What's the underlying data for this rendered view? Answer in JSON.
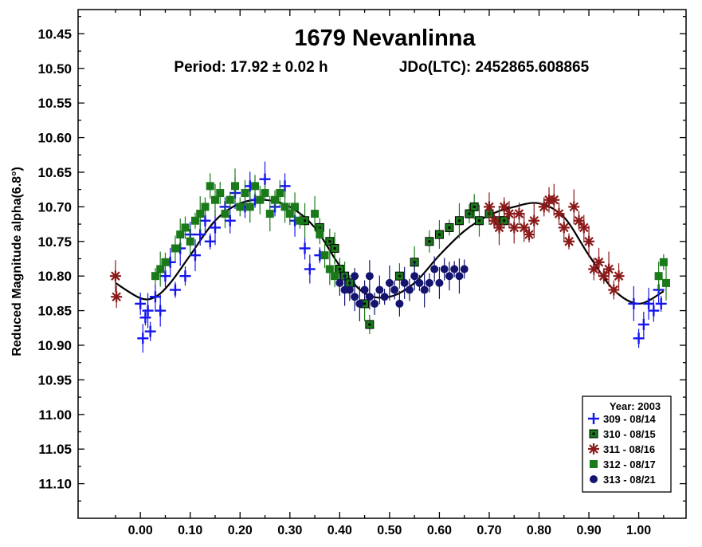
{
  "chart_data": {
    "type": "scatter",
    "title": "1679 Nevanlinna",
    "subtitle_period": "Period: 17.92 ± 0.02 h",
    "subtitle_epoch": "JDo(LTC): 2452865.608865",
    "ylabel": "Reduced Magnitude alpha(6.8°)",
    "xlabel": "",
    "xlim": [
      -0.125,
      1.095
    ],
    "ylim": [
      10.415,
      11.15
    ],
    "y_inverted": true,
    "x_ticks": [
      "0.00",
      "0.10",
      "0.20",
      "0.30",
      "0.40",
      "0.50",
      "0.60",
      "0.70",
      "0.80",
      "0.90",
      "1.00"
    ],
    "y_ticks": [
      "10.45",
      "10.50",
      "10.55",
      "10.60",
      "10.65",
      "10.70",
      "10.75",
      "10.80",
      "10.85",
      "10.90",
      "10.95",
      "11.00",
      "11.05",
      "11.10"
    ],
    "legend": {
      "title": "Year: 2003",
      "placement": "bottom-right",
      "entries": [
        {
          "label": "309 - 08/14",
          "marker": "plus",
          "color": "#1515ee"
        },
        {
          "label": "310 - 08/15",
          "marker": "square-dot",
          "color": "#1a7a1a"
        },
        {
          "label": "311 - 08/16",
          "marker": "asterisk",
          "color": "#8b1a1a"
        },
        {
          "label": "312 - 08/17",
          "marker": "square",
          "color": "#1a7a1a"
        },
        {
          "label": "313 - 08/21",
          "marker": "circle",
          "color": "#141470"
        }
      ]
    },
    "fit_curve": [
      [
        -0.05,
        10.81
      ],
      [
        0.0,
        10.832
      ],
      [
        0.03,
        10.83
      ],
      [
        0.06,
        10.81
      ],
      [
        0.1,
        10.77
      ],
      [
        0.15,
        10.72
      ],
      [
        0.2,
        10.695
      ],
      [
        0.25,
        10.69
      ],
      [
        0.3,
        10.7
      ],
      [
        0.35,
        10.73
      ],
      [
        0.4,
        10.785
      ],
      [
        0.45,
        10.825
      ],
      [
        0.5,
        10.83
      ],
      [
        0.55,
        10.81
      ],
      [
        0.6,
        10.77
      ],
      [
        0.65,
        10.735
      ],
      [
        0.7,
        10.712
      ],
      [
        0.75,
        10.7
      ],
      [
        0.8,
        10.695
      ],
      [
        0.85,
        10.715
      ],
      [
        0.9,
        10.77
      ],
      [
        0.95,
        10.82
      ],
      [
        1.0,
        10.84
      ],
      [
        1.05,
        10.822
      ]
    ],
    "series": [
      {
        "name": "309 - 08/14",
        "marker": "plus",
        "color": "#1515ee",
        "points": [
          [
            0.0,
            10.84
          ],
          [
            0.005,
            10.89
          ],
          [
            0.01,
            10.86
          ],
          [
            0.015,
            10.85
          ],
          [
            0.02,
            10.88
          ],
          [
            0.03,
            10.83
          ],
          [
            0.04,
            10.85
          ],
          [
            0.05,
            10.8
          ],
          [
            0.06,
            10.78
          ],
          [
            0.07,
            10.82
          ],
          [
            0.08,
            10.76
          ],
          [
            0.09,
            10.8
          ],
          [
            0.1,
            10.74
          ],
          [
            0.11,
            10.77
          ],
          [
            0.12,
            10.74
          ],
          [
            0.13,
            10.72
          ],
          [
            0.14,
            10.75
          ],
          [
            0.15,
            10.73
          ],
          [
            0.17,
            10.7
          ],
          [
            0.18,
            10.72
          ],
          [
            0.19,
            10.68
          ],
          [
            0.21,
            10.7
          ],
          [
            0.22,
            10.67
          ],
          [
            0.23,
            10.69
          ],
          [
            0.25,
            10.66
          ],
          [
            0.27,
            10.7
          ],
          [
            0.29,
            10.67
          ],
          [
            0.31,
            10.72
          ],
          [
            0.33,
            10.76
          ],
          [
            0.34,
            10.79
          ],
          [
            0.36,
            10.77
          ],
          [
            0.99,
            10.84
          ],
          [
            1.0,
            10.89
          ],
          [
            1.01,
            10.87
          ],
          [
            1.02,
            10.84
          ],
          [
            1.03,
            10.85
          ],
          [
            1.04,
            10.82
          ],
          [
            1.045,
            10.84
          ]
        ]
      },
      {
        "name": "310 - 08/15",
        "marker": "square-dot",
        "color": "#1a7a1a",
        "points": [
          [
            0.33,
            10.72
          ],
          [
            0.36,
            10.73
          ],
          [
            0.38,
            10.75
          ],
          [
            0.39,
            10.76
          ],
          [
            0.4,
            10.79
          ],
          [
            0.41,
            10.8
          ],
          [
            0.42,
            10.81
          ],
          [
            0.45,
            10.84
          ],
          [
            0.46,
            10.87
          ],
          [
            0.52,
            10.8
          ],
          [
            0.55,
            10.78
          ],
          [
            0.58,
            10.75
          ],
          [
            0.6,
            10.74
          ],
          [
            0.62,
            10.73
          ],
          [
            0.64,
            10.72
          ],
          [
            0.66,
            10.71
          ],
          [
            0.67,
            10.7
          ],
          [
            0.68,
            10.72
          ],
          [
            0.7,
            10.71
          ],
          [
            0.72,
            10.72
          ],
          [
            0.73,
            10.72
          ]
        ]
      },
      {
        "name": "311 - 08/16",
        "marker": "asterisk",
        "color": "#8b1a1a",
        "points": [
          [
            -0.05,
            10.8
          ],
          [
            -0.048,
            10.83
          ],
          [
            0.7,
            10.7
          ],
          [
            0.71,
            10.72
          ],
          [
            0.72,
            10.73
          ],
          [
            0.73,
            10.7
          ],
          [
            0.74,
            10.71
          ],
          [
            0.75,
            10.73
          ],
          [
            0.76,
            10.71
          ],
          [
            0.77,
            10.73
          ],
          [
            0.78,
            10.74
          ],
          [
            0.79,
            10.72
          ],
          [
            0.81,
            10.7
          ],
          [
            0.82,
            10.69
          ],
          [
            0.83,
            10.69
          ],
          [
            0.84,
            10.71
          ],
          [
            0.85,
            10.73
          ],
          [
            0.86,
            10.75
          ],
          [
            0.87,
            10.7
          ],
          [
            0.88,
            10.72
          ],
          [
            0.89,
            10.73
          ],
          [
            0.9,
            10.75
          ],
          [
            0.91,
            10.79
          ],
          [
            0.92,
            10.78
          ],
          [
            0.93,
            10.8
          ],
          [
            0.94,
            10.79
          ],
          [
            0.95,
            10.82
          ],
          [
            0.96,
            10.8
          ]
        ]
      },
      {
        "name": "312 - 08/17",
        "marker": "square",
        "color": "#1a7a1a",
        "points": [
          [
            0.03,
            10.8
          ],
          [
            0.04,
            10.79
          ],
          [
            0.05,
            10.78
          ],
          [
            0.07,
            10.76
          ],
          [
            0.08,
            10.74
          ],
          [
            0.09,
            10.73
          ],
          [
            0.1,
            10.75
          ],
          [
            0.11,
            10.72
          ],
          [
            0.12,
            10.71
          ],
          [
            0.13,
            10.7
          ],
          [
            0.14,
            10.67
          ],
          [
            0.15,
            10.69
          ],
          [
            0.16,
            10.68
          ],
          [
            0.17,
            10.71
          ],
          [
            0.18,
            10.69
          ],
          [
            0.19,
            10.67
          ],
          [
            0.2,
            10.7
          ],
          [
            0.21,
            10.68
          ],
          [
            0.22,
            10.7
          ],
          [
            0.23,
            10.67
          ],
          [
            0.24,
            10.69
          ],
          [
            0.25,
            10.68
          ],
          [
            0.26,
            10.71
          ],
          [
            0.27,
            10.69
          ],
          [
            0.28,
            10.68
          ],
          [
            0.29,
            10.7
          ],
          [
            0.3,
            10.71
          ],
          [
            0.31,
            10.7
          ],
          [
            0.32,
            10.72
          ],
          [
            0.35,
            10.71
          ],
          [
            0.36,
            10.74
          ],
          [
            0.37,
            10.77
          ],
          [
            0.38,
            10.79
          ],
          [
            0.39,
            10.8
          ],
          [
            1.04,
            10.8
          ],
          [
            1.05,
            10.78
          ],
          [
            1.055,
            10.81
          ]
        ]
      },
      {
        "name": "313 - 08/21",
        "marker": "circle",
        "color": "#141470",
        "points": [
          [
            0.4,
            10.81
          ],
          [
            0.41,
            10.82
          ],
          [
            0.42,
            10.82
          ],
          [
            0.43,
            10.83
          ],
          [
            0.43,
            10.8
          ],
          [
            0.44,
            10.84
          ],
          [
            0.45,
            10.82
          ],
          [
            0.46,
            10.83
          ],
          [
            0.46,
            10.8
          ],
          [
            0.47,
            10.84
          ],
          [
            0.48,
            10.82
          ],
          [
            0.49,
            10.83
          ],
          [
            0.5,
            10.81
          ],
          [
            0.51,
            10.82
          ],
          [
            0.52,
            10.84
          ],
          [
            0.53,
            10.81
          ],
          [
            0.54,
            10.82
          ],
          [
            0.55,
            10.8
          ],
          [
            0.56,
            10.81
          ],
          [
            0.57,
            10.82
          ],
          [
            0.58,
            10.81
          ],
          [
            0.59,
            10.79
          ],
          [
            0.6,
            10.81
          ],
          [
            0.61,
            10.79
          ],
          [
            0.62,
            10.8
          ],
          [
            0.63,
            10.79
          ],
          [
            0.64,
            10.8
          ],
          [
            0.65,
            10.79
          ]
        ]
      }
    ]
  }
}
